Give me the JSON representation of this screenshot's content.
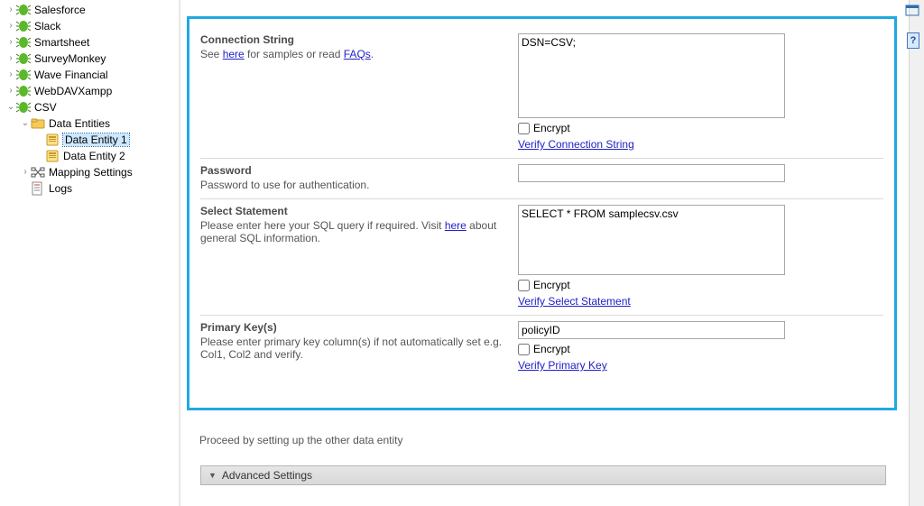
{
  "colors": {
    "highlight_border": "#21a9e1",
    "link": "#2121c7",
    "section_title": "#4a4a4a",
    "muted_text": "#555555",
    "tree_selected_bg": "#cde8ff",
    "advanced_bg_top": "#e6e6e6",
    "advanced_bg_bottom": "#d8d8d8"
  },
  "tree": {
    "items": [
      {
        "twisty": "›",
        "label": "Salesforce",
        "icon": "connector",
        "indent": 0
      },
      {
        "twisty": "›",
        "label": "Slack",
        "icon": "connector",
        "indent": 0
      },
      {
        "twisty": "›",
        "label": "Smartsheet",
        "icon": "connector",
        "indent": 0
      },
      {
        "twisty": "›",
        "label": "SurveyMonkey",
        "icon": "connector",
        "indent": 0
      },
      {
        "twisty": "›",
        "label": "Wave Financial",
        "icon": "connector",
        "indent": 0
      },
      {
        "twisty": "›",
        "label": "WebDAVXampp",
        "icon": "connector",
        "indent": 0
      },
      {
        "twisty": "⌄",
        "label": "CSV",
        "icon": "connector",
        "indent": 0
      },
      {
        "twisty": "⌄",
        "label": "Data Entities",
        "icon": "folder",
        "indent": 1
      },
      {
        "twisty": "",
        "label": "Data Entity 1",
        "icon": "entity",
        "indent": 2,
        "selected": true
      },
      {
        "twisty": "",
        "label": "Data Entity 2",
        "icon": "entity",
        "indent": 2
      },
      {
        "twisty": "›",
        "label": "Mapping Settings",
        "icon": "mapping",
        "indent": 1
      },
      {
        "twisty": "",
        "label": "Logs",
        "icon": "logs",
        "indent": 1
      }
    ]
  },
  "form": {
    "conn_string": {
      "title": "Connection String",
      "desc_prefix": "See ",
      "desc_link1": "here",
      "desc_mid": " for samples or read ",
      "desc_link2": "FAQs",
      "desc_suffix": ".",
      "value": "DSN=CSV;",
      "encrypt_label": "Encrypt",
      "verify_label": "Verify Connection String"
    },
    "password": {
      "title": "Password",
      "desc": "Password to use for authentication.",
      "value": ""
    },
    "select_stmt": {
      "title": "Select Statement",
      "desc_prefix": "Please enter here your SQL query if required. Visit ",
      "desc_link": "here",
      "desc_suffix": " about general SQL information.",
      "value": "SELECT * FROM samplecsv.csv",
      "encrypt_label": "Encrypt",
      "verify_label": "Verify Select Statement"
    },
    "primary_key": {
      "title": "Primary Key(s)",
      "desc": "Please enter primary key column(s) if not automatically set e.g. Col1, Col2 and verify.",
      "value": "policyID",
      "encrypt_label": "Encrypt",
      "verify_label": "Verify Primary Key"
    },
    "proceed_text": "Proceed by setting up the other data entity",
    "advanced_label": "Advanced Settings"
  }
}
